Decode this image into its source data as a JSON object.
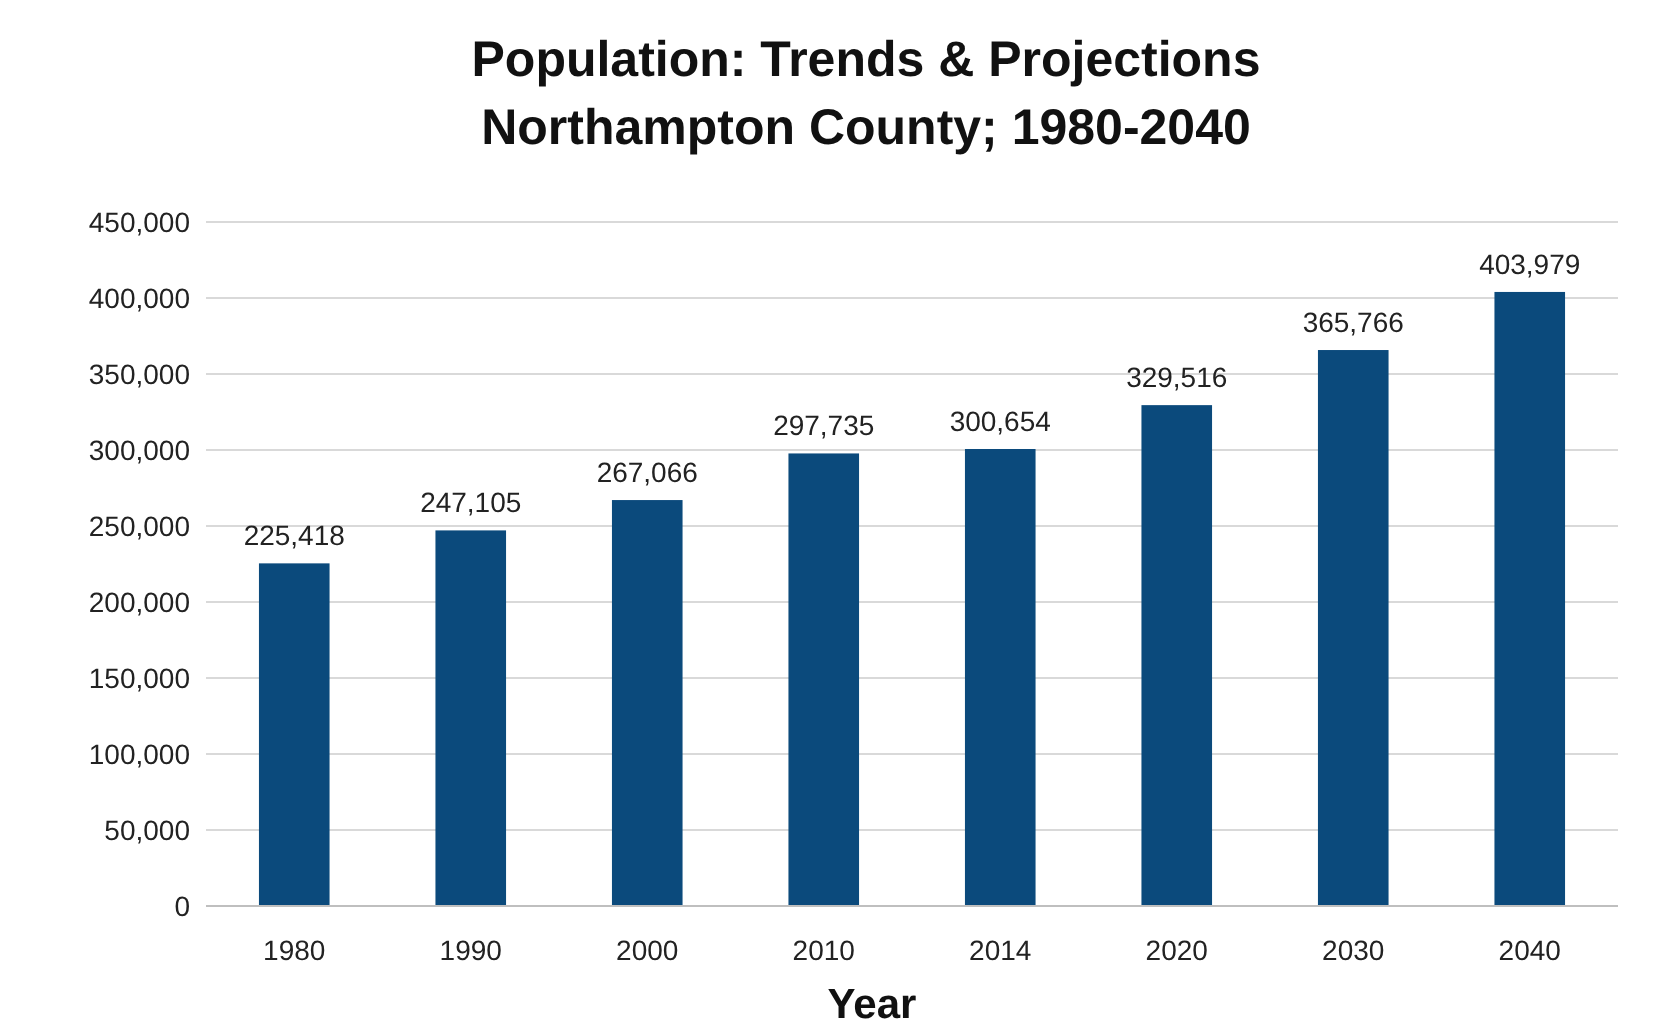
{
  "chart_data": {
    "type": "bar",
    "title": "Population: Trends & Projections\nNorthampton County; 1980-2040",
    "xlabel": "Year",
    "categories": [
      "1980",
      "1990",
      "2000",
      "2010",
      "2014",
      "2020",
      "2030",
      "2040"
    ],
    "values": [
      225418,
      247105,
      267066,
      297735,
      300654,
      329516,
      365766,
      403979
    ],
    "value_labels": [
      "225,418",
      "247,105",
      "267,066",
      "297,735",
      "300,654",
      "329,516",
      "365,766",
      "403,979"
    ],
    "color": "#0b4a7c",
    "grid": "y",
    "ylim": [
      0,
      450000
    ],
    "yticks": [
      {
        "value": 0,
        "label": "0"
      },
      {
        "value": 50000,
        "label": "50,000"
      },
      {
        "value": 100000,
        "label": "100,000"
      },
      {
        "value": 150000,
        "label": "150,000"
      },
      {
        "value": 200000,
        "label": "200,000"
      },
      {
        "value": 250000,
        "label": "250,000"
      },
      {
        "value": 300000,
        "label": "300,000"
      },
      {
        "value": 350000,
        "label": "350,000"
      },
      {
        "value": 400000,
        "label": "400,000"
      },
      {
        "value": 450000,
        "label": "450,000"
      }
    ]
  }
}
